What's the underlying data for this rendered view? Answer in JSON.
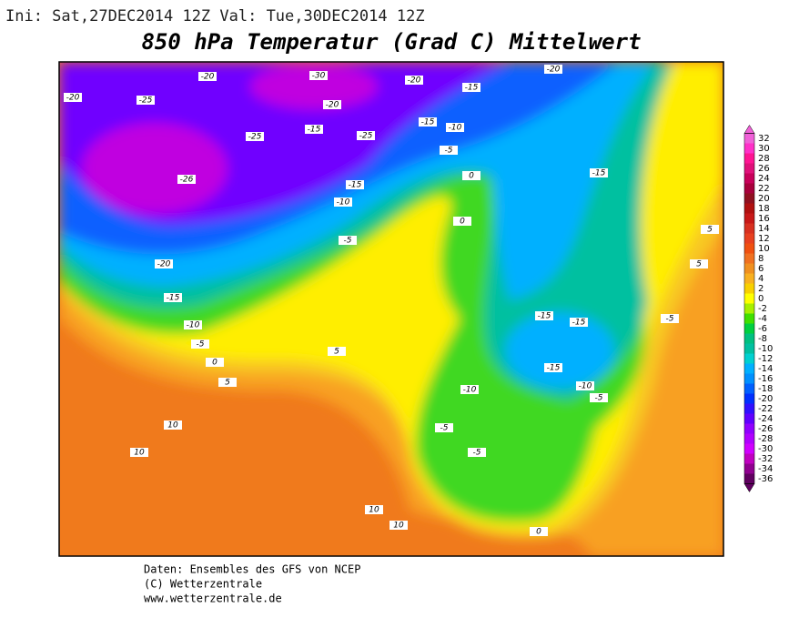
{
  "header": {
    "run_info": "Ini: Sat,27DEC2014 12Z  Val: Tue,30DEC2014 12Z",
    "title": "850 hPa Temperatur (Grad C) Mittelwert"
  },
  "legend": {
    "levels": [
      32,
      30,
      28,
      26,
      24,
      22,
      20,
      18,
      16,
      14,
      12,
      10,
      8,
      6,
      4,
      2,
      0,
      -2,
      -4,
      -6,
      -8,
      -10,
      -12,
      -14,
      -16,
      -18,
      -20,
      -22,
      -24,
      -26,
      -28,
      -30,
      -32,
      -34,
      -36
    ],
    "colors": [
      "#f060d8",
      "#ff30c8",
      "#ff1493",
      "#e0107a",
      "#c8005a",
      "#a8003c",
      "#901020",
      "#b01010",
      "#c81818",
      "#d83020",
      "#e84020",
      "#f05010",
      "#f07020",
      "#f09020",
      "#f8b020",
      "#f8d000",
      "#ffff00",
      "#a8f000",
      "#40e000",
      "#00d040",
      "#00c080",
      "#00c0a0",
      "#00d0d0",
      "#00b0ff",
      "#0090ff",
      "#0060ff",
      "#0030ff",
      "#3010ff",
      "#6000ff",
      "#9000ff",
      "#b000ff",
      "#d000ff",
      "#c000c0",
      "#900090",
      "#600060"
    ]
  },
  "contour_labels": [
    -20,
    -30,
    -20,
    -15,
    -20,
    -20,
    -25,
    -20,
    -15,
    -25,
    -25,
    -15,
    -10,
    -5,
    -26,
    -15,
    -10,
    -5,
    0,
    0,
    -15,
    5,
    5,
    -20,
    -15,
    -10,
    -5,
    0,
    5,
    5,
    -15,
    -15,
    -15,
    -10,
    -10,
    -5,
    -5,
    10,
    10,
    -5,
    -5,
    10,
    10,
    0
  ],
  "footer": [
    "Daten: Ensembles des GFS von NCEP",
    "(C) Wetterzentrale",
    "www.wetterzentrale.de"
  ]
}
